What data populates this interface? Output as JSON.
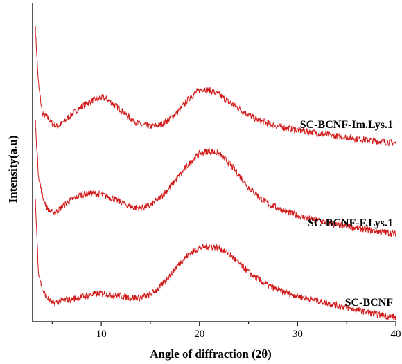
{
  "chart_data": {
    "type": "line",
    "title": "",
    "xlabel": "Angle of diffraction (2θ)",
    "ylabel": "Intensity(a.u)",
    "xlim": [
      3,
      40
    ],
    "ylim": [
      0,
      1
    ],
    "x_ticks": [
      "10",
      "20",
      "30",
      "40"
    ],
    "y_ticks": [],
    "grid": false,
    "legend": "inline labels at right of each curve",
    "line_color": "#d11a1a",
    "series": [
      {
        "name": "SC-BCNF-Im.Lys.1",
        "x": [
          3.3,
          3.6,
          4.0,
          4.5,
          5.0,
          5.5,
          6.0,
          7.0,
          8.0,
          9.0,
          10.0,
          10.5,
          11.0,
          12.0,
          13.0,
          14.0,
          15.0,
          16.0,
          17.0,
          18.0,
          19.0,
          20.0,
          20.5,
          21.0,
          22.0,
          23.0,
          24.0,
          25.0,
          26.0,
          27.0,
          28.0,
          30.0,
          32.0,
          34.0,
          36.0,
          38.0,
          40.0
        ],
        "values": [
          0.95,
          0.78,
          0.68,
          0.67,
          0.65,
          0.64,
          0.65,
          0.68,
          0.705,
          0.725,
          0.735,
          0.73,
          0.72,
          0.695,
          0.665,
          0.645,
          0.64,
          0.645,
          0.665,
          0.695,
          0.735,
          0.76,
          0.765,
          0.76,
          0.745,
          0.72,
          0.7,
          0.678,
          0.66,
          0.65,
          0.64,
          0.628,
          0.618,
          0.608,
          0.6,
          0.592,
          0.585
        ]
      },
      {
        "name": "SC-BCNF-F.Lys.1",
        "x": [
          3.3,
          3.6,
          4.0,
          4.5,
          5.0,
          5.5,
          6.0,
          7.0,
          8.0,
          9.0,
          10.0,
          11.0,
          12.0,
          13.0,
          14.0,
          15.0,
          16.0,
          17.0,
          18.0,
          19.0,
          20.0,
          21.0,
          22.0,
          23.0,
          24.0,
          25.0,
          26.0,
          27.0,
          28.0,
          30.0,
          32.0,
          34.0,
          36.0,
          38.0,
          40.0
        ],
        "values": [
          0.64,
          0.48,
          0.41,
          0.37,
          0.355,
          0.36,
          0.375,
          0.4,
          0.415,
          0.42,
          0.415,
          0.405,
          0.39,
          0.375,
          0.37,
          0.38,
          0.405,
          0.44,
          0.48,
          0.52,
          0.55,
          0.56,
          0.55,
          0.52,
          0.48,
          0.44,
          0.41,
          0.385,
          0.37,
          0.345,
          0.33,
          0.315,
          0.305,
          0.295,
          0.285
        ]
      },
      {
        "name": "SC-BCNF",
        "x": [
          3.3,
          3.6,
          4.0,
          4.5,
          5.0,
          5.5,
          6.0,
          7.0,
          8.0,
          9.0,
          10.0,
          11.0,
          12.0,
          13.0,
          14.0,
          15.0,
          16.0,
          17.0,
          18.0,
          19.0,
          20.0,
          21.0,
          22.0,
          23.0,
          24.0,
          25.0,
          26.0,
          27.0,
          28.0,
          30.0,
          32.0,
          34.0,
          36.0,
          38.0,
          40.0
        ],
        "values": [
          0.38,
          0.16,
          0.1,
          0.075,
          0.055,
          0.06,
          0.065,
          0.07,
          0.078,
          0.085,
          0.09,
          0.085,
          0.08,
          0.075,
          0.075,
          0.085,
          0.11,
          0.15,
          0.19,
          0.22,
          0.24,
          0.245,
          0.24,
          0.22,
          0.19,
          0.16,
          0.135,
          0.115,
          0.1,
          0.08,
          0.065,
          0.05,
          0.035,
          0.02,
          0.01
        ]
      }
    ]
  }
}
